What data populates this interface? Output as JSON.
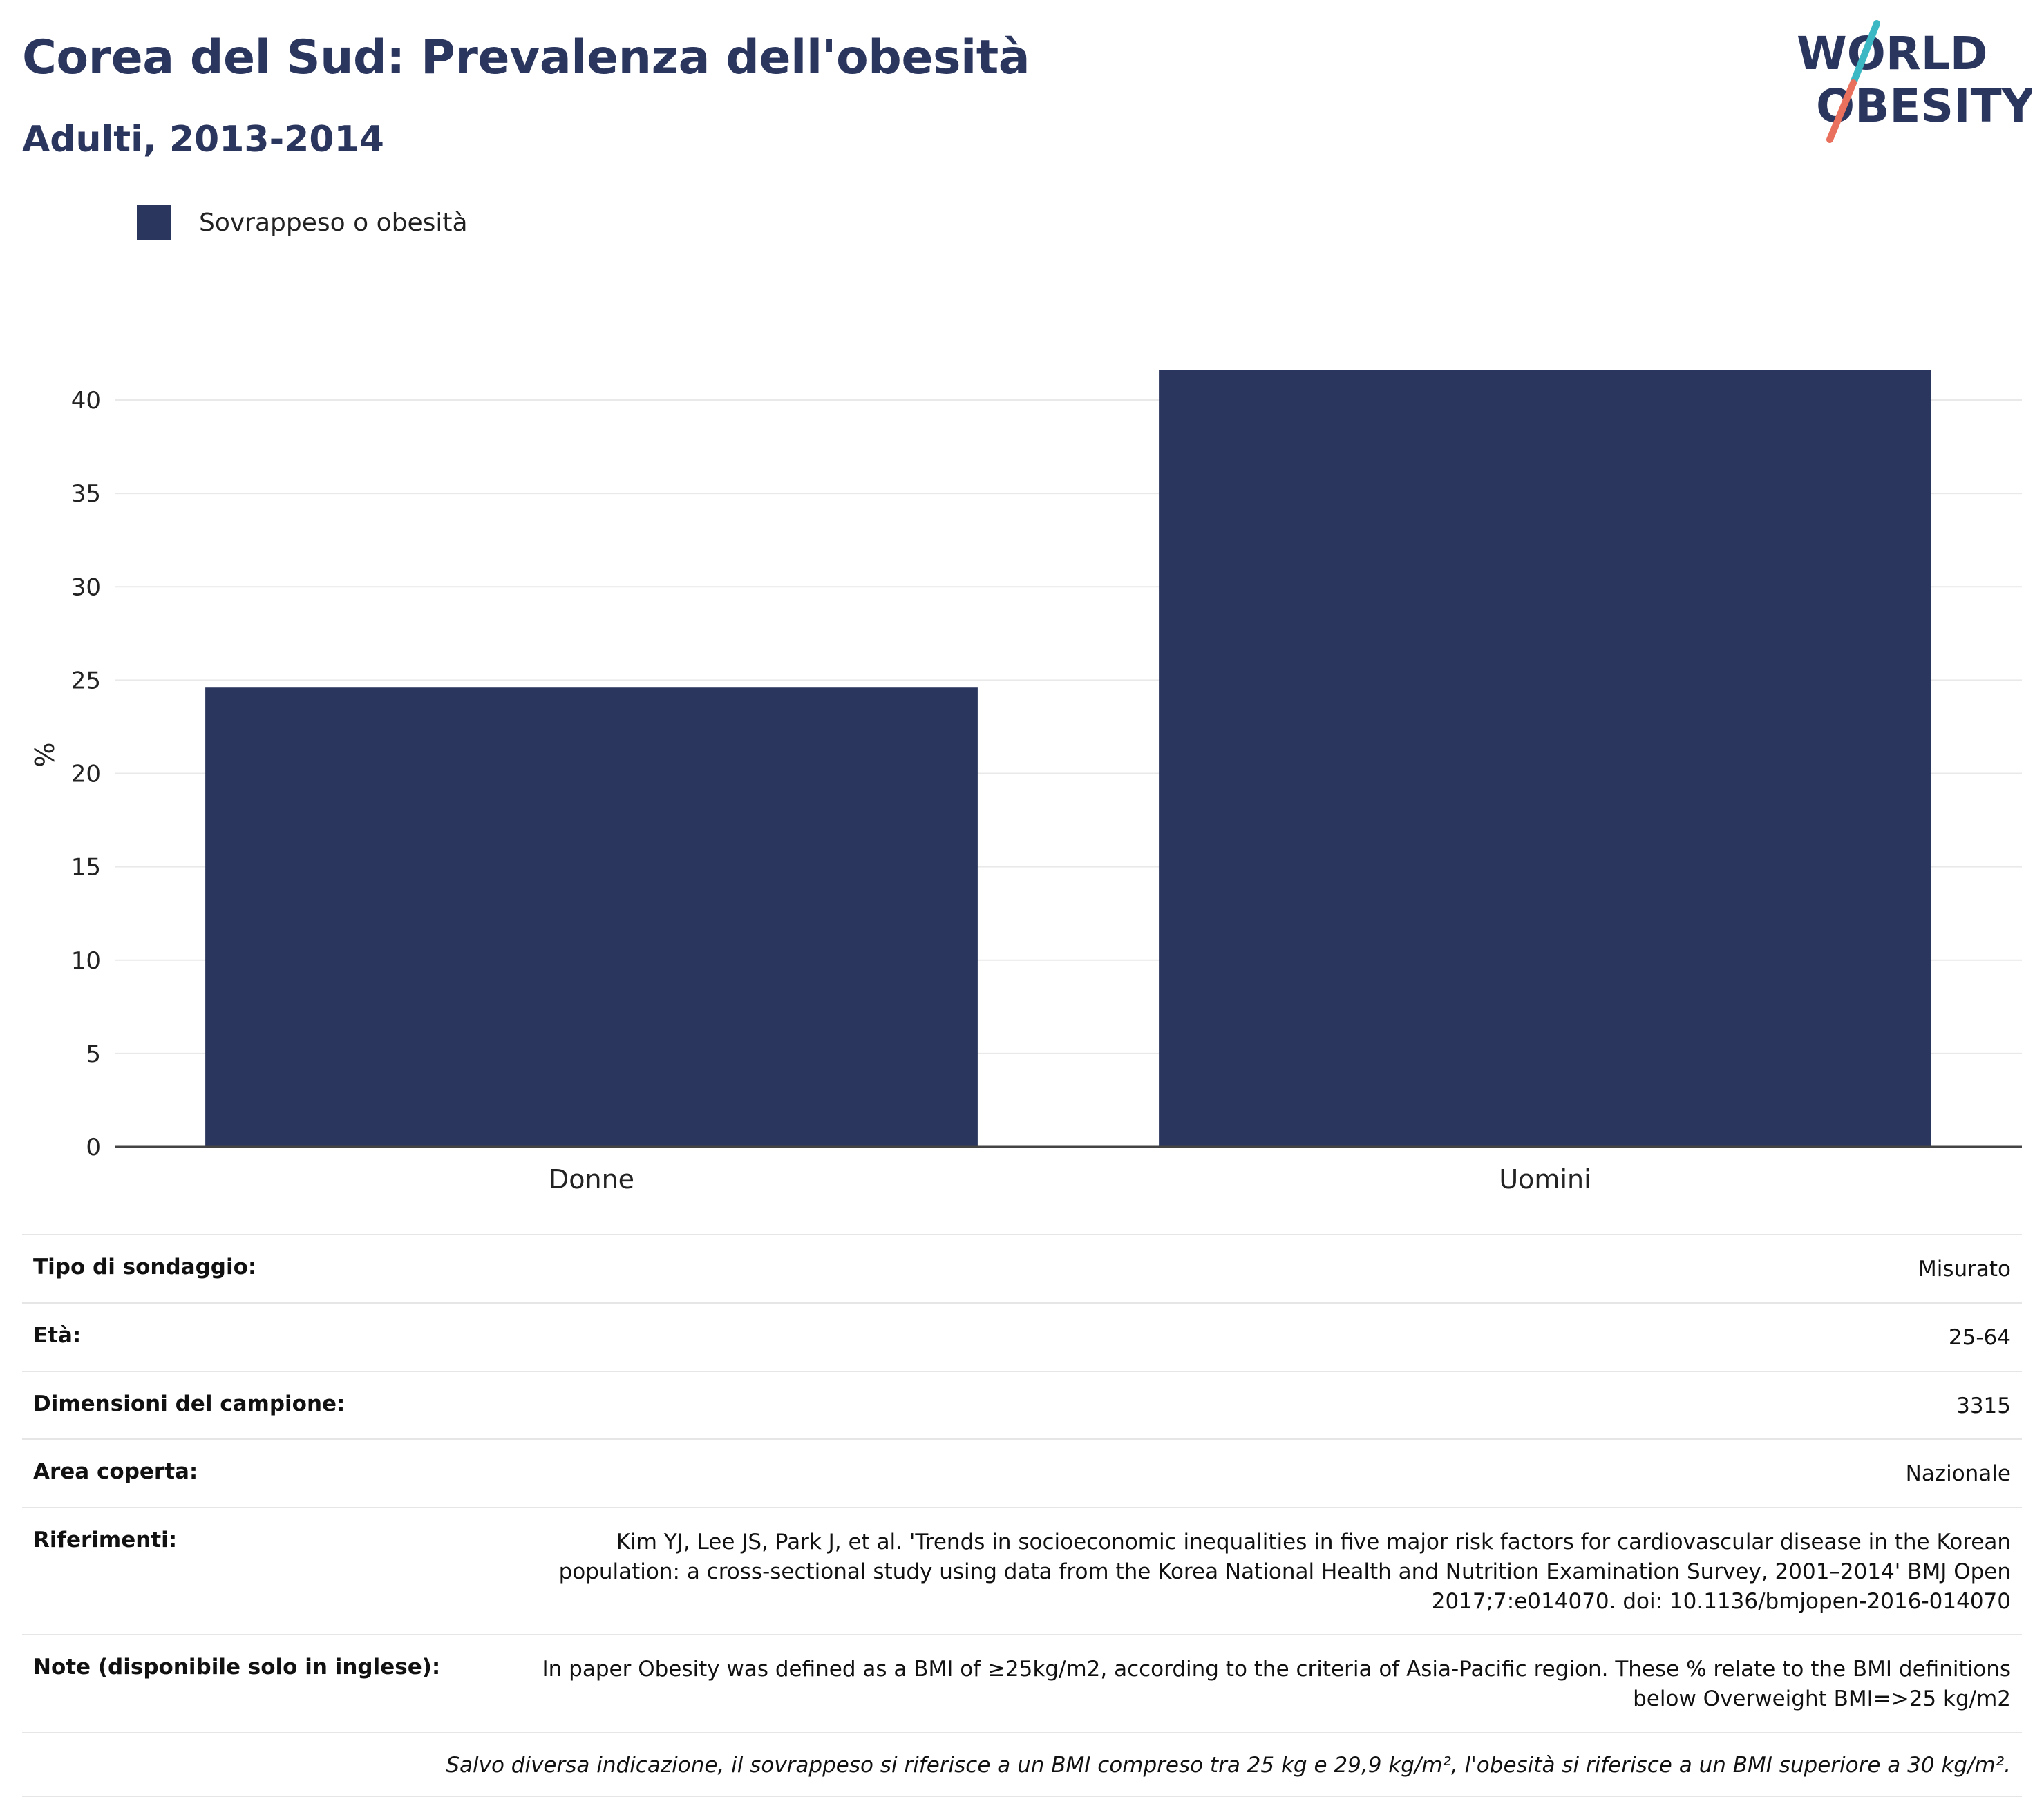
{
  "header": {
    "title": "Corea del Sud: Prevalenza dell'obesità",
    "subtitle": "Adulti, 2013-2014"
  },
  "logo": {
    "line1": "WORLD",
    "line2": "OBESITY",
    "colors": {
      "text": "#2b365e",
      "slash_top": "#3bb8c3",
      "slash_bottom": "#e8705c"
    }
  },
  "chart_data": {
    "type": "bar",
    "categories": [
      "Donne",
      "Uomini"
    ],
    "series": [
      {
        "name": "Sovrappeso o obesità",
        "values": [
          24.6,
          41.6
        ],
        "color": "#2b365e"
      }
    ],
    "xlabel": "",
    "ylabel": "%",
    "ylim": [
      0,
      42
    ],
    "yticks": [
      0,
      5,
      10,
      15,
      20,
      25,
      30,
      35,
      40
    ],
    "grid": true,
    "legend_position": "top-left"
  },
  "info": {
    "rows": [
      {
        "label": "Tipo di sondaggio:",
        "value": "Misurato"
      },
      {
        "label": "Età:",
        "value": "25-64"
      },
      {
        "label": "Dimensioni del campione:",
        "value": "3315"
      },
      {
        "label": "Area coperta:",
        "value": "Nazionale"
      },
      {
        "label": "Riferimenti:",
        "value": "Kim YJ, Lee JS, Park J, et al. 'Trends in socioeconomic inequalities in five major risk factors for cardiovascular disease in the Korean population: a cross-sectional study using data from the Korea National Health and Nutrition Examination Survey, 2001–2014' BMJ Open 2017;7:e014070. doi: 10.1136/bmjopen-2016-014070"
      },
      {
        "label": "Note (disponibile solo in inglese):",
        "value": "In paper Obesity was defined as a BMI of ≥25kg/m2, according to the criteria of Asia-Pacific region. These % relate to the BMI definitions below Overweight BMI=>25 kg/m2"
      }
    ],
    "footnote": "Salvo diversa indicazione, il sovrappeso si riferisce a un BMI compreso tra 25 kg e 29,9 kg/m², l'obesità si riferisce a un BMI superiore a 30 kg/m²."
  }
}
